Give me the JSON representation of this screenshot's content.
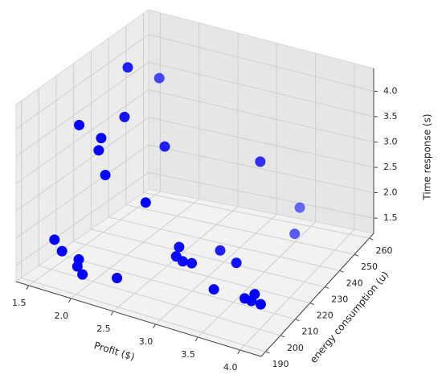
{
  "chart_data": {
    "type": "scatter3d",
    "xlabel": "Profit ($)",
    "ylabel": "energy consumption (u)",
    "zlabel": "Time response (s)",
    "color": "#0000ff",
    "x": [
      1.75,
      1.82,
      1.87,
      1.79,
      1.9,
      1.87,
      2.21,
      1.95,
      3.25,
      2.44,
      3.45,
      3.46,
      1.65,
      1.74,
      1.94,
      2.0,
      2.06,
      2.47,
      2.62,
      2.66,
      2.74,
      2.85,
      2.9,
      3.25,
      3.41,
      3.92,
      3.97,
      4.0,
      4.11
    ],
    "y": [
      232.6,
      247.8,
      225,
      202.2,
      209.8,
      209.8,
      232.6,
      209.8,
      240.2,
      209.8,
      255.4,
      251.6,
      194.6,
      194.6,
      194.6,
      190.8,
      190.8,
      190.8,
      221.2,
      217.4,
      217.4,
      217.4,
      232.6,
      225,
      202.2,
      194.6,
      198.4,
      194.6,
      194.6
    ],
    "z": [
      4.26,
      3.73,
      3.58,
      3.94,
      3.57,
      3.33,
      2.99,
      2.91,
      2.92,
      2.62,
      1.68,
      1.29,
      1.94,
      1.77,
      1.71,
      1.7,
      1.58,
      1.71,
      1.57,
      1.51,
      1.45,
      1.46,
      1.31,
      1.42,
      1.63,
      1.92,
      1.91,
      1.91,
      1.9
    ],
    "xlim": [
      1.35,
      4.25
    ],
    "ylim": [
      187,
      263
    ],
    "zlim": [
      1.2,
      4.45
    ],
    "xticks": [
      1.5,
      {
        "value": 2,
        "label": "2.0"
      },
      2.5,
      {
        "value": 3,
        "label": "3.0"
      },
      3.5,
      {
        "value": 4,
        "label": "4.0"
      }
    ],
    "yticks": [
      190,
      200,
      210,
      220,
      230,
      240,
      250,
      260
    ],
    "zticks": [
      1.5,
      {
        "value": 2,
        "label": "2.0"
      },
      2.5,
      {
        "value": 3,
        "label": "3.0"
      },
      3.5,
      {
        "value": 4,
        "label": "4.0"
      }
    ],
    "grid": true
  }
}
